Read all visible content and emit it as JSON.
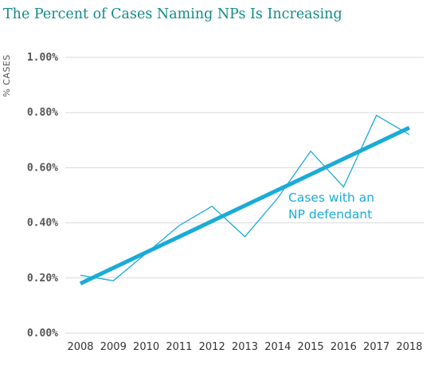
{
  "chart_data": {
    "type": "line",
    "title": "The Percent of Cases Naming NPs Is Increasing",
    "ylabel": "% CASES",
    "xlabel": "",
    "x": [
      "2008",
      "2009",
      "2010",
      "2011",
      "2012",
      "2013",
      "2014",
      "2015",
      "2016",
      "2017",
      "2018"
    ],
    "ylim": [
      0,
      1.0
    ],
    "yticks": [
      "0.00%",
      "0.20%",
      "0.40%",
      "0.60%",
      "0.80%",
      "1.00%"
    ],
    "ytick_values": [
      0,
      0.2,
      0.4,
      0.6,
      0.8,
      1.0
    ],
    "grid": true,
    "series": [
      {
        "role": "observed",
        "values": [
          0.21,
          0.19,
          0.29,
          0.39,
          0.46,
          0.35,
          0.49,
          0.66,
          0.53,
          0.79,
          0.72
        ]
      },
      {
        "role": "trend",
        "values": [
          0.18,
          0.236,
          0.292,
          0.348,
          0.404,
          0.46,
          0.516,
          0.572,
          0.628,
          0.684,
          0.745
        ]
      }
    ],
    "annotation": {
      "lines": [
        "Cases with an",
        "NP defendant"
      ]
    },
    "colors": {
      "line": "#1aabd8",
      "title": "#138a8a",
      "grid": "#d9d9d9"
    }
  }
}
